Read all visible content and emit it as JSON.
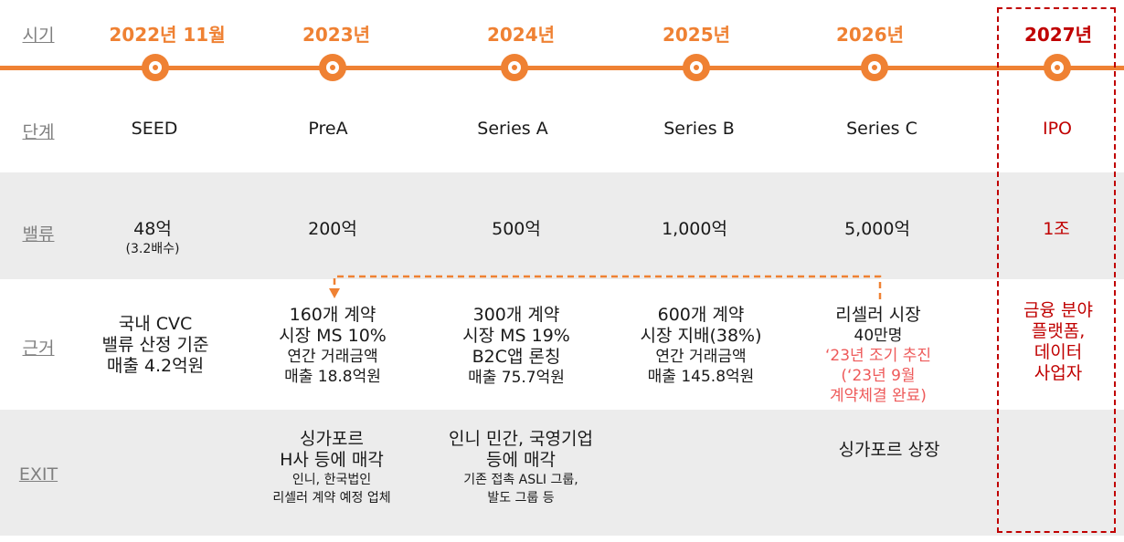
{
  "row_labels": {
    "period": "시기",
    "stage": "단계",
    "valuation": "밸류",
    "basis": "근거",
    "exit": "EXIT"
  },
  "columns": [
    {
      "year": "2022년 11월",
      "stage": "SEED",
      "valuation": "48억",
      "valuation_note": "(3.2배수)",
      "basis": [
        "국내 CVC",
        "밸류 산정 기준",
        "매출 4.2억원"
      ]
    },
    {
      "year": "2023년",
      "stage": "PreA",
      "valuation": "200억",
      "basis_main": [
        "160개 계약",
        "시장 MS 10%"
      ],
      "basis_sub": [
        "연간 거래금액",
        "매출 18.8억원"
      ],
      "exit_main": [
        "싱가포르",
        "H사 등에 매각"
      ],
      "exit_sub": [
        "인니, 한국법인",
        "리셀러 계약 예정 업체"
      ]
    },
    {
      "year": "2024년",
      "stage": "Series A",
      "valuation": "500억",
      "basis_main": [
        "300개 계약",
        "시장 MS 19%",
        "B2C앱 론칭"
      ],
      "basis_sub": [
        "매출 75.7억원"
      ],
      "exit_main": [
        "인니 민간, 국영기업",
        "등에 매각"
      ],
      "exit_sub": [
        "기존 접촉 ASLI 그룹,",
        "발도 그룹 등"
      ]
    },
    {
      "year": "2025년",
      "stage": "Series B",
      "valuation": "1,000억",
      "basis_main": [
        "600개 계약",
        "시장 지배(38%)"
      ],
      "basis_sub": [
        "연간 거래금액",
        "매출 145.8억원"
      ]
    },
    {
      "year": "2026년",
      "stage": "Series C",
      "valuation": "5,000억",
      "basis_main": [
        "리셀러 시장"
      ],
      "basis_sub": [
        "40만명"
      ],
      "basis_note": [
        "‘23년 조기 추진",
        "(‘23년 9월",
        "계약체결 완료)"
      ],
      "exit_main": [
        "싱가포르 상장"
      ]
    },
    {
      "year": "2027년",
      "stage": "IPO",
      "valuation": "1조",
      "basis": [
        "금융 분야",
        "플랫폼,",
        "데이터",
        "사업자"
      ]
    }
  ],
  "colors": {
    "accent": "#ef8133",
    "ipo_red": "#c00000",
    "note_pink": "#ee5a5a",
    "band_gray": "#ececec"
  },
  "icons": [
    "timeline-node-icon",
    "dashed-arrow-icon"
  ]
}
